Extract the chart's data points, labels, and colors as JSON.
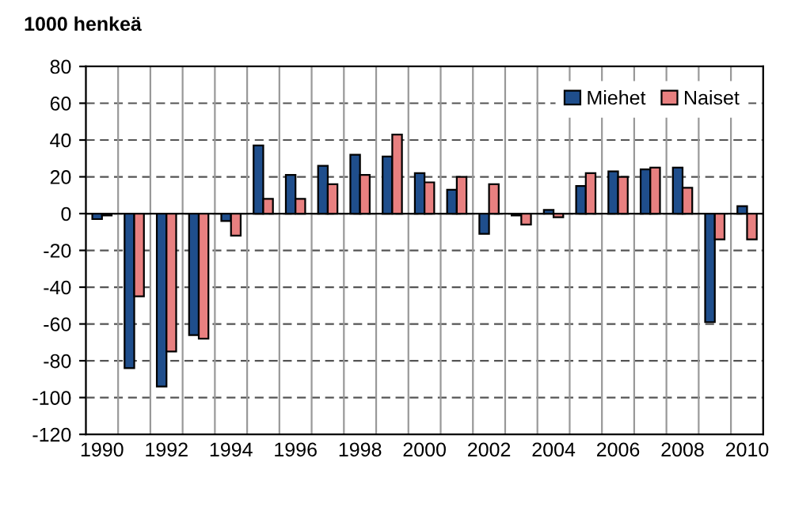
{
  "chart_data": {
    "type": "bar",
    "ylabel": "1000 henkeä",
    "categories": [
      "1990",
      null,
      "1992",
      null,
      "1994",
      null,
      "1996",
      null,
      "1998",
      null,
      "2000",
      null,
      "2002",
      null,
      "2004",
      null,
      "2006",
      null,
      "2008",
      null,
      "2010"
    ],
    "series": [
      {
        "name": "Miehet",
        "color": "#1f4e8c",
        "values": [
          -3,
          -84,
          -94,
          -66,
          -4,
          37,
          21,
          26,
          32,
          31,
          22,
          13,
          -11,
          -1,
          2,
          15,
          23,
          24,
          25,
          -59,
          4
        ]
      },
      {
        "name": "Naiset",
        "color": "#e88080",
        "values": [
          -1,
          -45,
          -75,
          -68,
          -12,
          8,
          8,
          16,
          21,
          43,
          17,
          20,
          16,
          -6,
          -2,
          22,
          20,
          25,
          14,
          -14,
          -14
        ]
      }
    ],
    "ylim": [
      -120,
      80
    ],
    "yticks": [
      -120,
      -100,
      -80,
      -60,
      -40,
      -20,
      0,
      20,
      40,
      60,
      80
    ],
    "grid": true,
    "legend": "top right"
  }
}
